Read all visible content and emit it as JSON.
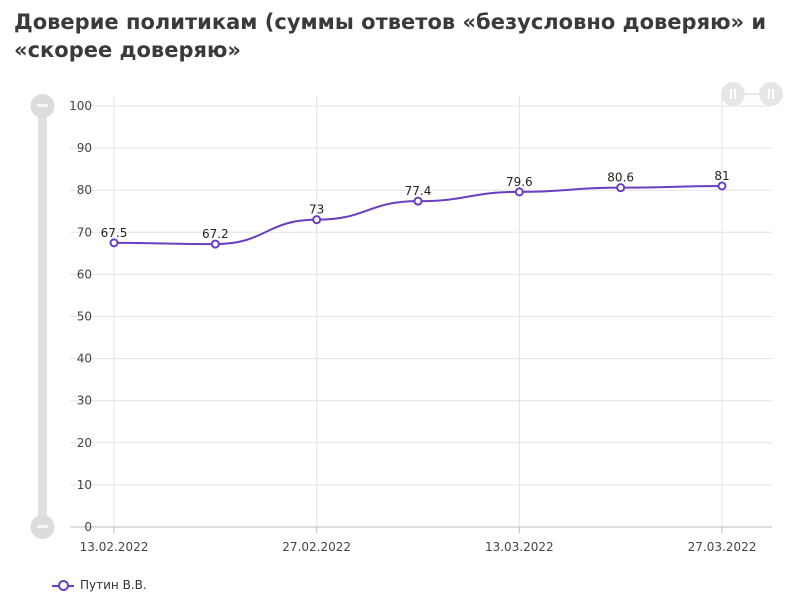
{
  "chart_data": {
    "type": "line",
    "title": "Доверие политикам (суммы ответов «безусловно доверяю» и «скорее доверяю»",
    "x": [
      "13.02.2022",
      "20.02.2022",
      "27.02.2022",
      "06.03.2022",
      "13.03.2022",
      "20.03.2022",
      "27.03.2022"
    ],
    "x_tick_labels": [
      "13.02.2022",
      "27.02.2022",
      "13.03.2022",
      "27.03.2022"
    ],
    "y_ticks": [
      0,
      10,
      20,
      30,
      40,
      50,
      60,
      70,
      80,
      90,
      100
    ],
    "ylim": [
      0,
      100
    ],
    "grid": true,
    "legend_position": "bottom-left",
    "series": [
      {
        "name": "Путин В.В.",
        "color": "#6a3fc1",
        "values": [
          67.5,
          67.2,
          73,
          77.4,
          79.6,
          80.6,
          81
        ],
        "labels": [
          "67.5",
          "67.2",
          "73",
          "77.4",
          "79.6",
          "80.6",
          "81"
        ]
      }
    ]
  }
}
